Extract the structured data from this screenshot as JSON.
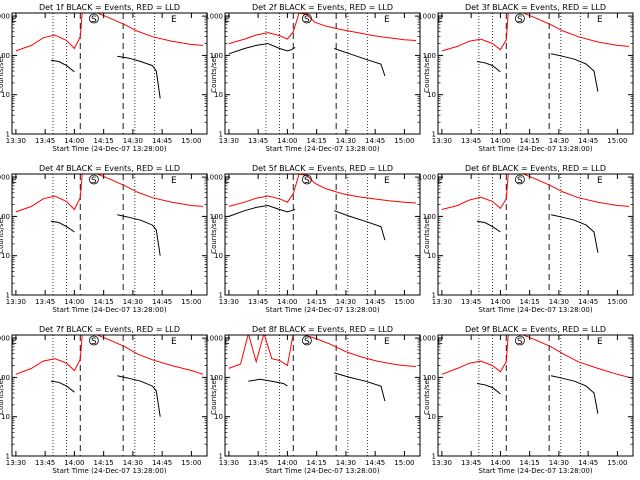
{
  "colors": {
    "events": "#000000",
    "lld": "#ff0000",
    "axis": "#000000",
    "background": "#ffffff"
  },
  "shared": {
    "xlabel": "Start Time (24-Dec-07 13:28:00)",
    "ylabel": "Counts/sec",
    "xticks": [
      "13:30",
      "13:45",
      "14:00",
      "14:15",
      "14:30",
      "14:45",
      "15:00"
    ],
    "xtick_minutes": [
      0,
      15,
      30,
      45,
      60,
      75,
      90
    ],
    "xlim_minutes": [
      -2,
      98
    ],
    "yticks": [
      "1",
      "10",
      "100",
      "1000"
    ],
    "yscale": "log",
    "ylim": [
      1,
      1200
    ],
    "markers": [
      "E",
      "S",
      "E"
    ],
    "marker_minutes": [
      -1,
      40,
      81
    ],
    "dotted_lines_minutes": [
      19,
      26,
      61,
      71
    ],
    "dashed_lines_minutes": [
      33,
      55
    ]
  },
  "chart_data": [
    {
      "type": "line",
      "title": "Det 1f BLACK = Events, RED = LLD",
      "series": [
        {
          "name": "BLACK = Events",
          "color": "#000000",
          "gap": [
            30,
            52
          ],
          "x": [
            18,
            22,
            26,
            30,
            52,
            58,
            64,
            70,
            72,
            74
          ],
          "y": [
            75,
            70,
            55,
            38,
            95,
            85,
            70,
            55,
            40,
            8
          ]
        },
        {
          "name": "RED = LLD",
          "color": "#ff0000",
          "x": [
            0,
            8,
            14,
            20,
            26,
            30,
            33,
            34,
            40,
            48,
            56,
            62,
            70,
            80,
            90,
            96
          ],
          "y": [
            130,
            180,
            280,
            330,
            240,
            150,
            300,
            1200,
            1300,
            900,
            600,
            420,
            300,
            230,
            190,
            180
          ]
        }
      ]
    },
    {
      "type": "line",
      "title": "Det 2f BLACK = Events, RED = LLD",
      "series": [
        {
          "name": "BLACK = Events",
          "color": "#000000",
          "gap": [
            34,
            54
          ],
          "x": [
            0,
            8,
            14,
            20,
            26,
            30,
            32,
            34,
            54,
            62,
            70,
            78,
            80
          ],
          "y": [
            110,
            150,
            180,
            200,
            150,
            130,
            140,
            160,
            150,
            110,
            80,
            60,
            30
          ]
        },
        {
          "name": "RED = LLD",
          "color": "#ff0000",
          "x": [
            0,
            8,
            14,
            20,
            26,
            30,
            33,
            36,
            40,
            44,
            50,
            58,
            66,
            74,
            82,
            90,
            96
          ],
          "y": [
            200,
            260,
            330,
            380,
            320,
            260,
            400,
            1200,
            1100,
            700,
            550,
            450,
            380,
            320,
            280,
            250,
            240
          ]
        }
      ]
    },
    {
      "type": "line",
      "title": "Det 3f BLACK = Events, RED = LLD",
      "series": [
        {
          "name": "BLACK = Events",
          "color": "#000000",
          "gap": [
            30,
            56
          ],
          "x": [
            18,
            22,
            26,
            30,
            56,
            62,
            68,
            74,
            78,
            80
          ],
          "y": [
            70,
            65,
            55,
            38,
            110,
            95,
            80,
            60,
            40,
            12
          ]
        },
        {
          "name": "RED = LLD",
          "color": "#ff0000",
          "x": [
            0,
            8,
            14,
            20,
            26,
            30,
            33,
            34,
            40,
            48,
            56,
            62,
            70,
            80,
            90,
            96
          ],
          "y": [
            130,
            170,
            230,
            260,
            200,
            140,
            250,
            1200,
            1300,
            900,
            600,
            420,
            300,
            220,
            180,
            170
          ]
        }
      ]
    },
    {
      "type": "line",
      "title": "Det 4f BLACK = Events, RED = LLD",
      "series": [
        {
          "name": "BLACK = Events",
          "color": "#000000",
          "gap": [
            30,
            52
          ],
          "x": [
            18,
            22,
            26,
            30,
            52,
            58,
            64,
            70,
            72,
            74
          ],
          "y": [
            75,
            70,
            55,
            40,
            110,
            95,
            80,
            60,
            45,
            10
          ]
        },
        {
          "name": "RED = LLD",
          "color": "#ff0000",
          "x": [
            0,
            8,
            14,
            20,
            26,
            30,
            33,
            34,
            40,
            48,
            56,
            62,
            70,
            80,
            90,
            96
          ],
          "y": [
            130,
            180,
            280,
            330,
            240,
            150,
            300,
            1200,
            1300,
            900,
            600,
            420,
            300,
            230,
            190,
            180
          ]
        }
      ]
    },
    {
      "type": "line",
      "title": "Det 5f BLACK = Events, RED = LLD",
      "series": [
        {
          "name": "BLACK = Events",
          "color": "#000000",
          "gap": [
            34,
            54
          ],
          "x": [
            0,
            8,
            14,
            20,
            26,
            30,
            32,
            34,
            54,
            62,
            70,
            78,
            80
          ],
          "y": [
            100,
            140,
            170,
            190,
            150,
            130,
            140,
            150,
            140,
            100,
            75,
            55,
            25
          ]
        },
        {
          "name": "RED = LLD",
          "color": "#ff0000",
          "x": [
            0,
            8,
            14,
            20,
            26,
            30,
            33,
            36,
            40,
            44,
            50,
            58,
            66,
            74,
            82,
            90,
            96
          ],
          "y": [
            180,
            230,
            290,
            330,
            280,
            230,
            380,
            1200,
            1100,
            700,
            500,
            380,
            320,
            280,
            250,
            230,
            220
          ]
        }
      ]
    },
    {
      "type": "line",
      "title": "Det 6f BLACK = Events, RED = LLD",
      "series": [
        {
          "name": "BLACK = Events",
          "color": "#000000",
          "gap": [
            30,
            56
          ],
          "x": [
            18,
            22,
            26,
            30,
            56,
            62,
            68,
            74,
            78,
            80
          ],
          "y": [
            75,
            70,
            55,
            40,
            110,
            95,
            80,
            60,
            40,
            12
          ]
        },
        {
          "name": "RED = LLD",
          "color": "#ff0000",
          "x": [
            0,
            8,
            14,
            20,
            26,
            30,
            33,
            34,
            40,
            48,
            56,
            62,
            70,
            80,
            90,
            96
          ],
          "y": [
            150,
            190,
            260,
            310,
            240,
            160,
            280,
            1200,
            1300,
            900,
            600,
            420,
            300,
            230,
            190,
            180
          ]
        }
      ]
    },
    {
      "type": "line",
      "title": "Det 7f BLACK = Events, RED = LLD",
      "series": [
        {
          "name": "BLACK = Events",
          "color": "#000000",
          "gap": [
            30,
            52
          ],
          "x": [
            18,
            22,
            26,
            30,
            52,
            58,
            64,
            70,
            72,
            74
          ],
          "y": [
            80,
            75,
            60,
            42,
            110,
            95,
            80,
            60,
            45,
            10
          ]
        },
        {
          "name": "RED = LLD",
          "color": "#ff0000",
          "x": [
            0,
            8,
            14,
            20,
            26,
            30,
            33,
            34,
            40,
            48,
            56,
            62,
            70,
            80,
            90,
            96
          ],
          "y": [
            120,
            170,
            260,
            300,
            230,
            150,
            290,
            1200,
            1300,
            900,
            600,
            400,
            280,
            200,
            150,
            120
          ]
        }
      ]
    },
    {
      "type": "line",
      "title": "Det 8f BLACK = Events, RED = LLD",
      "series": [
        {
          "name": "BLACK = Events",
          "color": "#000000",
          "gap": [
            30,
            54
          ],
          "x": [
            10,
            16,
            22,
            28,
            30,
            54,
            62,
            70,
            78,
            80
          ],
          "y": [
            80,
            90,
            80,
            70,
            60,
            130,
            100,
            80,
            60,
            25
          ]
        },
        {
          "name": "RED = LLD",
          "color": "#ff0000",
          "x": [
            0,
            6,
            10,
            14,
            18,
            22,
            26,
            30,
            33,
            36,
            44,
            52,
            60,
            68,
            76,
            84,
            90,
            96
          ],
          "y": [
            170,
            220,
            1300,
            250,
            1300,
            300,
            270,
            200,
            1300,
            1300,
            1000,
            700,
            450,
            330,
            260,
            220,
            200,
            190
          ]
        }
      ]
    },
    {
      "type": "line",
      "title": "Det 9f BLACK = Events, RED = LLD",
      "series": [
        {
          "name": "BLACK = Events",
          "color": "#000000",
          "gap": [
            30,
            56
          ],
          "x": [
            18,
            22,
            26,
            30,
            56,
            62,
            68,
            74,
            78,
            80
          ],
          "y": [
            70,
            65,
            55,
            38,
            110,
            95,
            80,
            60,
            40,
            12
          ]
        },
        {
          "name": "RED = LLD",
          "color": "#ff0000",
          "x": [
            0,
            8,
            14,
            20,
            26,
            30,
            33,
            34,
            40,
            48,
            56,
            62,
            70,
            80,
            90,
            96
          ],
          "y": [
            120,
            170,
            230,
            260,
            200,
            140,
            250,
            1200,
            1300,
            900,
            600,
            400,
            250,
            170,
            120,
            100
          ]
        }
      ]
    }
  ]
}
